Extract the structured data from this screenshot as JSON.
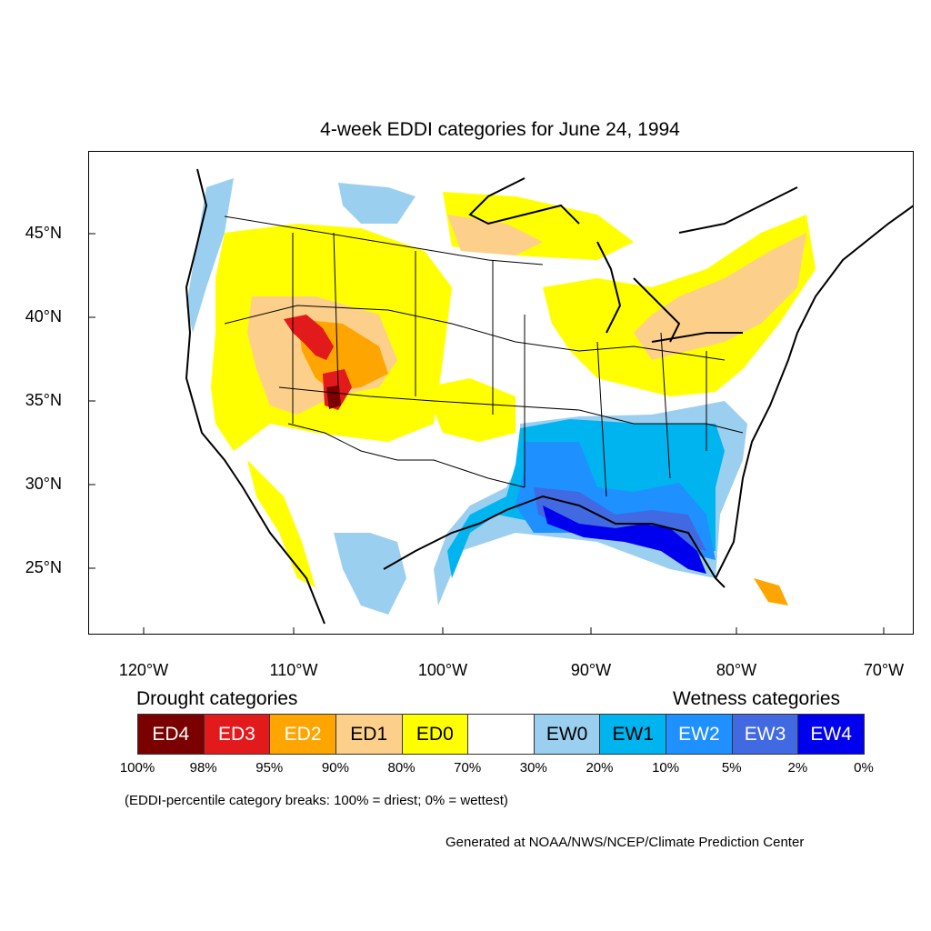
{
  "title": "4-week EDDI categories for June 24, 1994",
  "map": {
    "lat_ticks": [
      "45°N",
      "40°N",
      "35°N",
      "30°N",
      "25°N"
    ],
    "lon_ticks": [
      "120°W",
      "110°W",
      "100°W",
      "90°W",
      "80°W",
      "70°W"
    ]
  },
  "legend": {
    "drought_title": "Drought categories",
    "wetness_title": "Wetness categories",
    "categories": [
      {
        "label": "ED4",
        "color": "#7b0000",
        "text_color": "#ffffff"
      },
      {
        "label": "ED3",
        "color": "#e31a1c",
        "text_color": "#ffffff"
      },
      {
        "label": "ED2",
        "color": "#ffa500",
        "text_color": "#ffffff"
      },
      {
        "label": "ED1",
        "color": "#fcd08a",
        "text_color": "#000000"
      },
      {
        "label": "ED0",
        "color": "#ffff00",
        "text_color": "#000000"
      },
      {
        "label": "",
        "color": "#ffffff",
        "text_color": "#000000"
      },
      {
        "label": "EW0",
        "color": "#9bcff0",
        "text_color": "#000000"
      },
      {
        "label": "EW1",
        "color": "#00b4f0",
        "text_color": "#000000"
      },
      {
        "label": "EW2",
        "color": "#1e90ff",
        "text_color": "#ffffff"
      },
      {
        "label": "EW3",
        "color": "#4169e1",
        "text_color": "#ffffff"
      },
      {
        "label": "EW4",
        "color": "#0000ee",
        "text_color": "#ffffff"
      }
    ],
    "breaks": [
      "100%",
      "98%",
      "95%",
      "90%",
      "80%",
      "70%",
      "30%",
      "20%",
      "10%",
      "5%",
      "2%",
      "0%"
    ]
  },
  "note": "(EDDI-percentile category breaks: 100% = driest; 0% = wettest)",
  "credit": "Generated at NOAA/NWS/NCEP/Climate Prediction Center"
}
